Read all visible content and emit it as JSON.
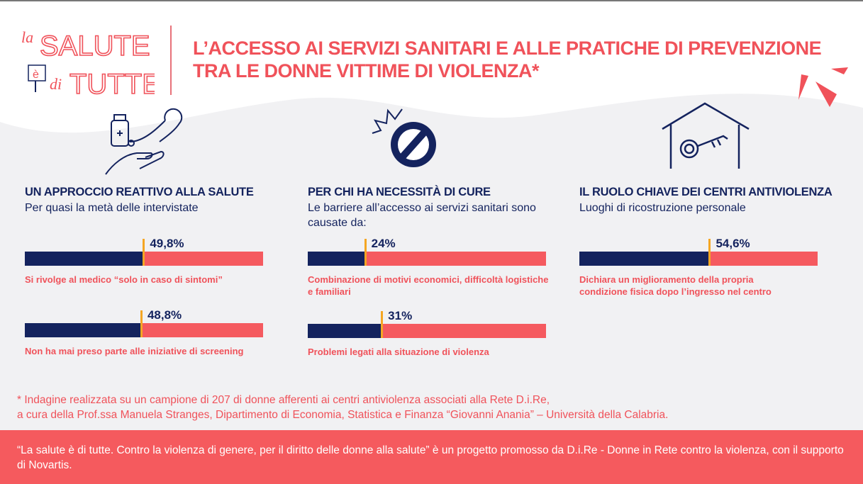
{
  "header": {
    "logo_text": "la SALUTE è di TUTTE",
    "title_line1": "L’ACCESSO AI SERVIZI SANITARI E ALLE PRATICHE DI PREVENZIONE",
    "title_line2": "TRA LE DONNE VITTIME DI VIOLENZA*"
  },
  "colors": {
    "navy": "#14235e",
    "coral": "#f55a5f",
    "marker": "#f5a623",
    "accent_text": "#f0525a"
  },
  "sections": [
    {
      "icon": "hand-medicine-stethoscope-icon",
      "heading": "UN APPROCCIO REATTIVO ALLA SALUTE",
      "subtitle": "Per quasi la metà delle intervistate",
      "items": [
        {
          "value_label": "49,8%",
          "caption": "Si rivolge al medico “solo in caso di sintomi”"
        },
        {
          "value_label": "48,8%",
          "caption": "Non ha mai preso parte alle iniziative di screening"
        }
      ]
    },
    {
      "icon": "prohibited-sign-icon",
      "heading": "PER CHI HA NECESSITÀ DI CURE",
      "subtitle": "Le barriere all’accesso ai servizi sanitari sono causate da:",
      "items": [
        {
          "value_label": "24%",
          "caption": "Combinazione di motivi economici, difficoltà logistiche e familiari"
        },
        {
          "value_label": "31%",
          "caption": "Problemi legati alla situazione di violenza"
        }
      ]
    },
    {
      "icon": "house-key-icon",
      "heading": "IL RUOLO CHIAVE DEI CENTRI ANTIVIOLENZA",
      "subtitle": "Luoghi di ricostruzione personale",
      "items": [
        {
          "value_label": "54,6%",
          "caption": "Dichiara un miglioramento della propria condizione fisica dopo l’ingresso nel centro"
        }
      ]
    }
  ],
  "chart_data": {
    "type": "bar",
    "orientation": "horizontal",
    "stacked_to_100": true,
    "unit": "%",
    "categories": [
      "Si rivolge al medico “solo in caso di sintomi”",
      "Non ha mai preso parte alle iniziative di screening",
      "Combinazione di motivi economici, difficoltà logistiche e familiari",
      "Problemi legati alla situazione di violenza",
      "Dichiara un miglioramento della propria condizione fisica dopo l’ingresso nel centro"
    ],
    "values": [
      49.8,
      48.8,
      24,
      31,
      54.6
    ],
    "xlim": [
      0,
      100
    ]
  },
  "note": {
    "line1": "* Indagine realizzata su un campione di 207 di donne afferenti ai centri antiviolenza associati alla Rete D.i.Re,",
    "line2": "a cura della Prof.ssa Manuela Stranges, Dipartimento di Economia, Statistica e Finanza “Giovanni Anania” – Università della Calabria."
  },
  "footer": {
    "text": "“La salute è di tutte. Contro la violenza di genere, per il diritto delle donne alla salute” è un progetto promosso da D.i.Re - Donne in Rete contro la violenza, con il supporto di Novartis."
  }
}
